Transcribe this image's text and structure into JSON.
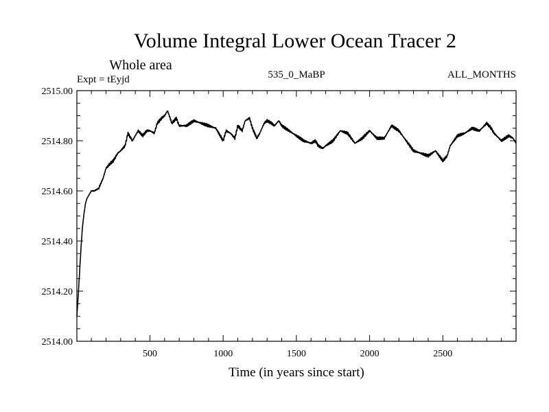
{
  "chart_data": {
    "type": "line",
    "title": "Volume Integral Lower Ocean Tracer 2",
    "subtitle": "Whole area",
    "expt_label": "Expt = tEyjd",
    "center_label": "535_0_MaBP",
    "right_label": "ALL_MONTHS",
    "xlabel": "Time (in years since start)",
    "ylabel": "",
    "xlim": [
      1,
      3000
    ],
    "ylim": [
      2514.0,
      2515.0
    ],
    "x_ticks": [
      500,
      1000,
      1500,
      2000,
      2500
    ],
    "x_tick_labels": [
      "500",
      "1000",
      "1500",
      "2000",
      "2500"
    ],
    "y_ticks": [
      2514.0,
      2514.2,
      2514.4,
      2514.6,
      2514.8,
      2515.0
    ],
    "y_tick_labels": [
      "2514.00",
      "2514.20",
      "2514.40",
      "2514.60",
      "2514.80",
      "2515.00"
    ],
    "series": [
      {
        "name": "Volume Integral Lower Ocean Tracer 2",
        "color": "#000000",
        "x": [
          1,
          10,
          20,
          30,
          40,
          50,
          60,
          70,
          80,
          100,
          120,
          150,
          180,
          200,
          230,
          250,
          280,
          300,
          330,
          350,
          380,
          400,
          420,
          450,
          480,
          500,
          530,
          550,
          580,
          600,
          620,
          650,
          680,
          700,
          750,
          800,
          850,
          900,
          950,
          1000,
          1020,
          1050,
          1080,
          1100,
          1130,
          1150,
          1180,
          1200,
          1230,
          1250,
          1280,
          1300,
          1330,
          1350,
          1380,
          1400,
          1450,
          1500,
          1550,
          1600,
          1630,
          1650,
          1680,
          1700,
          1750,
          1800,
          1850,
          1900,
          1950,
          2000,
          2050,
          2100,
          2130,
          2150,
          2200,
          2250,
          2300,
          2350,
          2400,
          2450,
          2500,
          2530,
          2550,
          2600,
          2650,
          2700,
          2750,
          2800,
          2830,
          2850,
          2900,
          2950,
          2980,
          3000
        ],
        "values": [
          2514.1,
          2514.18,
          2514.28,
          2514.38,
          2514.46,
          2514.51,
          2514.55,
          2514.57,
          2514.58,
          2514.6,
          2514.6,
          2514.61,
          2514.65,
          2514.69,
          2514.71,
          2514.72,
          2514.75,
          2514.76,
          2514.78,
          2514.83,
          2514.8,
          2514.82,
          2514.84,
          2514.82,
          2514.84,
          2514.84,
          2514.83,
          2514.87,
          2514.89,
          2514.9,
          2514.92,
          2514.87,
          2514.89,
          2514.86,
          2514.86,
          2514.88,
          2514.87,
          2514.86,
          2514.85,
          2514.8,
          2514.84,
          2514.83,
          2514.81,
          2514.86,
          2514.84,
          2514.88,
          2514.89,
          2514.85,
          2514.81,
          2514.83,
          2514.87,
          2514.88,
          2514.87,
          2514.86,
          2514.88,
          2514.86,
          2514.84,
          2514.82,
          2514.8,
          2514.79,
          2514.8,
          2514.78,
          2514.77,
          2514.78,
          2514.8,
          2514.84,
          2514.83,
          2514.79,
          2514.81,
          2514.84,
          2514.81,
          2514.81,
          2514.84,
          2514.86,
          2514.84,
          2514.8,
          2514.76,
          2514.75,
          2514.74,
          2514.76,
          2514.72,
          2514.74,
          2514.78,
          2514.82,
          2514.83,
          2514.85,
          2514.84,
          2514.87,
          2514.85,
          2514.83,
          2514.8,
          2514.82,
          2514.81,
          2514.79
        ]
      }
    ]
  }
}
